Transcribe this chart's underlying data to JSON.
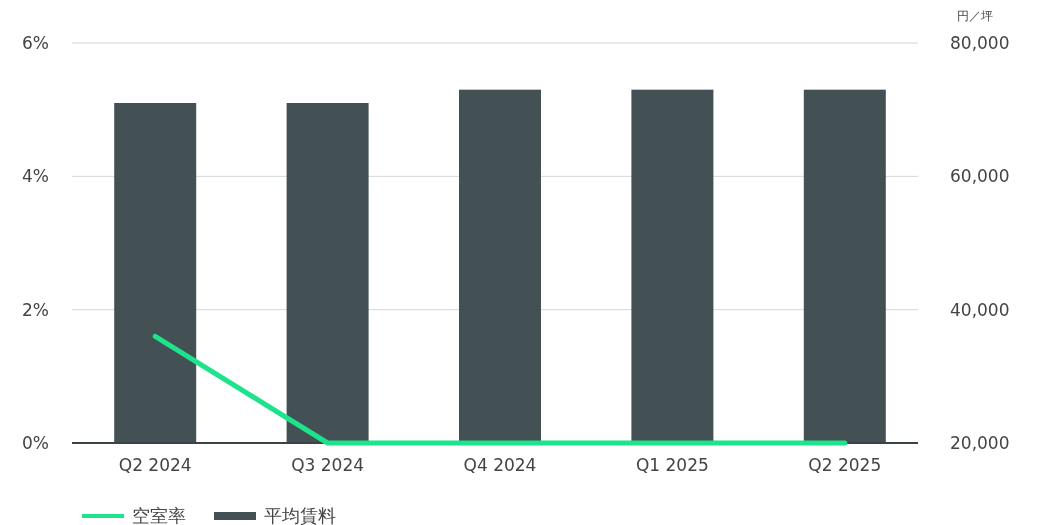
{
  "chart_data": {
    "type": "bar",
    "categories": [
      "Q2 2024",
      "Q3 2024",
      "Q4 2024",
      "Q1 2025",
      "Q2 2025"
    ],
    "series": [
      {
        "name": "空室率",
        "type": "line",
        "color": "#1de38c",
        "values": [
          1.6,
          0,
          0,
          0,
          0
        ]
      },
      {
        "name": "平均賃料",
        "axis": "y2",
        "color": "#435154",
        "values": [
          71000,
          71000,
          73000,
          73000,
          73000
        ]
      }
    ],
    "ylim": [
      0,
      6
    ],
    "yticks": [
      {
        "value": 0,
        "label": "0%"
      },
      {
        "value": 2,
        "label": "2%"
      },
      {
        "value": 4,
        "label": "4%"
      },
      {
        "value": 6,
        "label": "6%"
      }
    ],
    "y2label": "円／坪",
    "y2lim": [
      20000,
      80000
    ],
    "y2ticks": [
      {
        "value": 20000,
        "label": "20,000"
      },
      {
        "value": 40000,
        "label": "40,000"
      },
      {
        "value": 60000,
        "label": "60,000"
      },
      {
        "value": 80000,
        "label": "80,000"
      }
    ],
    "grid": "y",
    "legend": "bottom left",
    "marker": "none",
    "line_style": "solid"
  }
}
